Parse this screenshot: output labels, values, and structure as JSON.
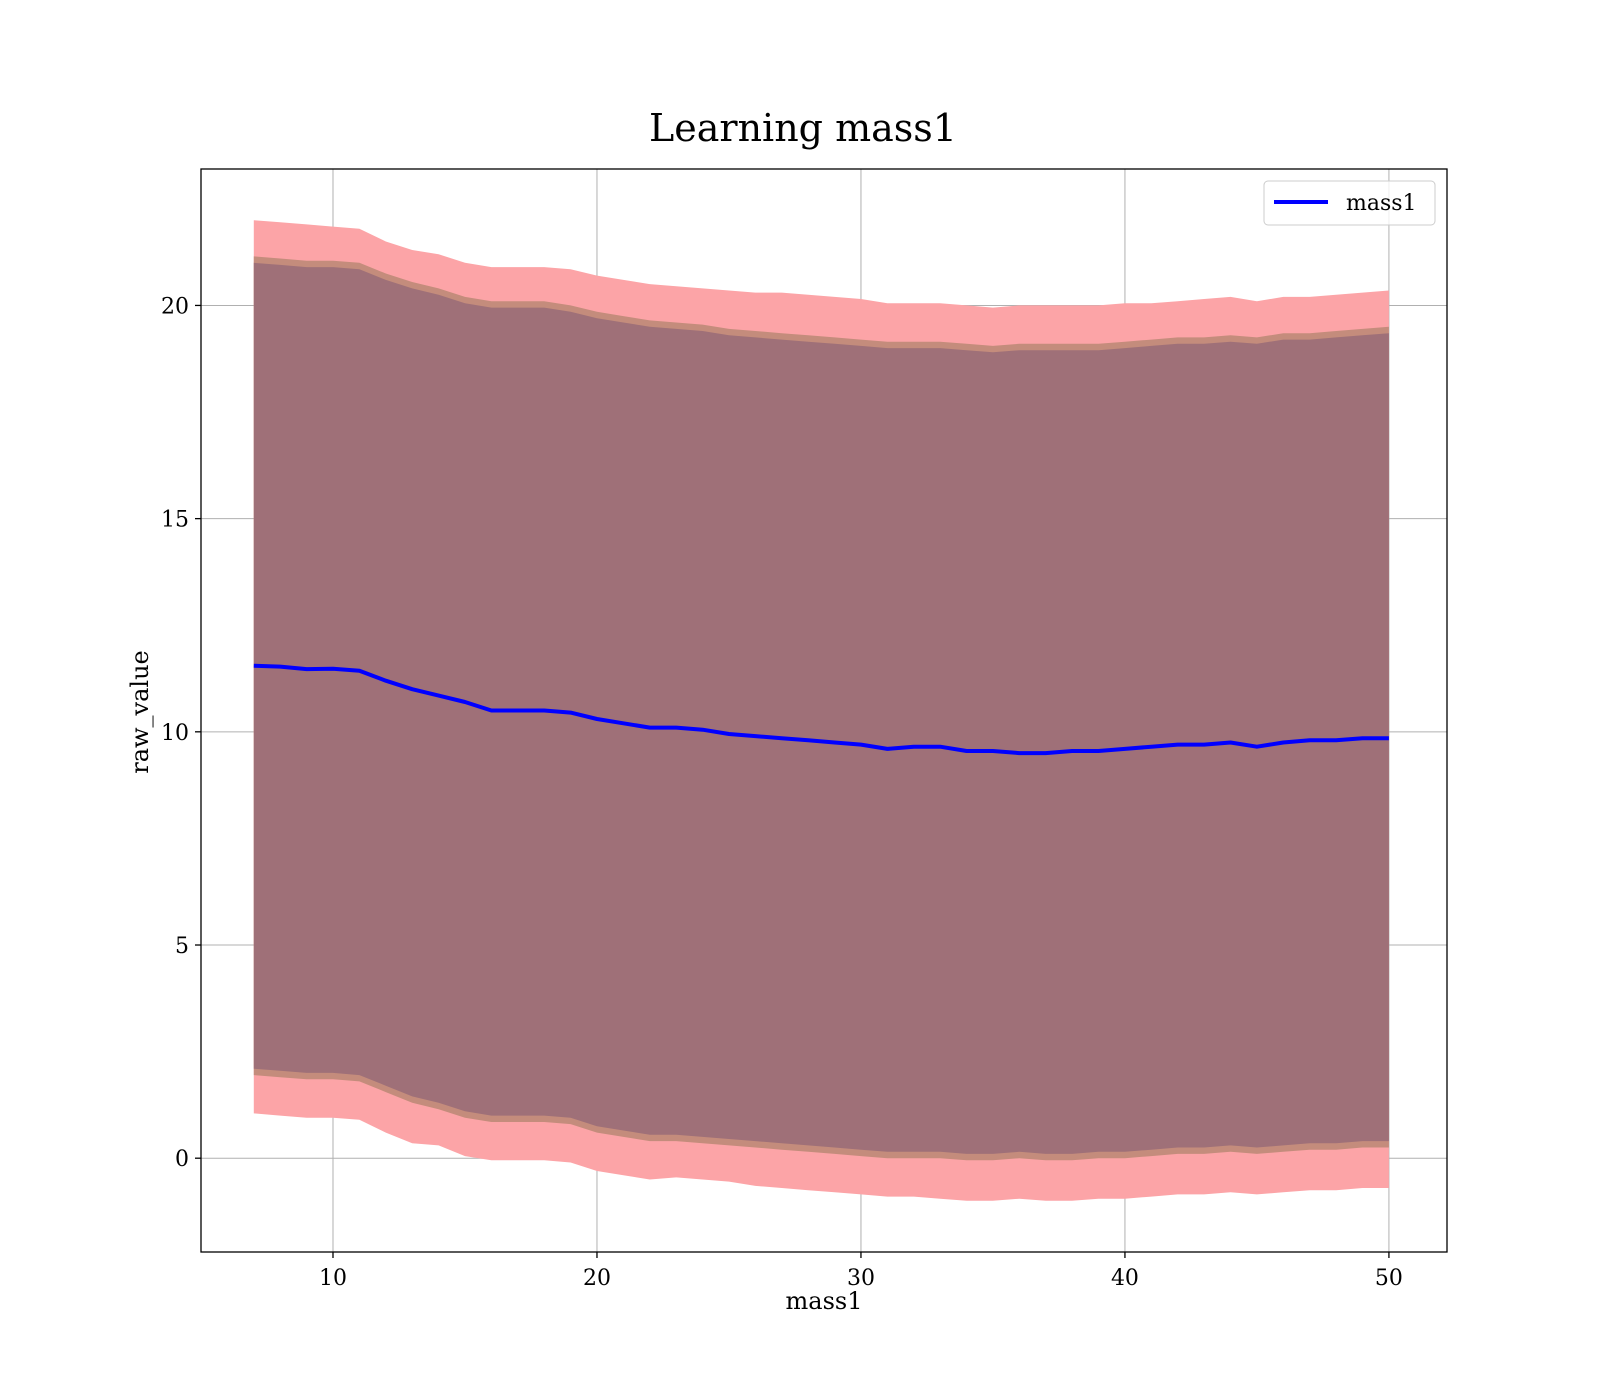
{
  "chart_data": {
    "type": "area",
    "title": "Learning mass1",
    "xlabel": "mass1",
    "ylabel": "raw_value",
    "xlim": [
      5,
      52.2
    ],
    "ylim": [
      -2.2,
      23.2
    ],
    "xticks": [
      10,
      20,
      30,
      40,
      50
    ],
    "yticks": [
      0,
      5,
      10,
      15,
      20
    ],
    "grid": true,
    "legend": {
      "placement": "top-right",
      "entries": [
        "mass1"
      ]
    },
    "colors": {
      "line": "#0000ff",
      "outer_band": "#fca4a7",
      "middle_band": "#c48c7c",
      "inner_band": "#9f7078",
      "grid": "#b0b0b0"
    },
    "x": [
      7,
      8,
      9,
      10,
      11,
      12,
      13,
      14,
      15,
      16,
      17,
      18,
      19,
      20,
      21,
      22,
      23,
      24,
      25,
      26,
      27,
      28,
      29,
      30,
      31,
      32,
      33,
      34,
      35,
      36,
      37,
      38,
      39,
      40,
      41,
      42,
      43,
      44,
      45,
      46,
      47,
      48,
      49,
      50
    ],
    "series": [
      {
        "name": "mass1",
        "values": [
          11.55,
          11.53,
          11.47,
          11.48,
          11.43,
          11.2,
          11.0,
          10.85,
          10.7,
          10.5,
          10.5,
          10.5,
          10.45,
          10.3,
          10.2,
          10.1,
          10.1,
          10.05,
          9.95,
          9.9,
          9.85,
          9.8,
          9.75,
          9.7,
          9.6,
          9.65,
          9.65,
          9.55,
          9.55,
          9.5,
          9.5,
          9.55,
          9.55,
          9.6,
          9.65,
          9.7,
          9.7,
          9.75,
          9.65,
          9.75,
          9.8,
          9.8,
          9.85,
          9.85
        ]
      }
    ],
    "bands": [
      {
        "upper": [
          22.0,
          21.95,
          21.9,
          21.85,
          21.8,
          21.5,
          21.3,
          21.2,
          21.0,
          20.9,
          20.9,
          20.9,
          20.85,
          20.7,
          20.6,
          20.5,
          20.45,
          20.4,
          20.35,
          20.3,
          20.3,
          20.25,
          20.2,
          20.15,
          20.05,
          20.05,
          20.05,
          20.0,
          19.95,
          20.0,
          20.0,
          20.0,
          20.0,
          20.05,
          20.05,
          20.1,
          20.15,
          20.2,
          20.1,
          20.2,
          20.2,
          20.25,
          20.3,
          20.35
        ],
        "lower": [
          1.05,
          1.0,
          0.95,
          0.95,
          0.9,
          0.6,
          0.35,
          0.3,
          0.05,
          -0.05,
          -0.05,
          -0.05,
          -0.1,
          -0.3,
          -0.4,
          -0.5,
          -0.45,
          -0.5,
          -0.55,
          -0.65,
          -0.7,
          -0.75,
          -0.8,
          -0.85,
          -0.9,
          -0.9,
          -0.95,
          -1.0,
          -1.0,
          -0.95,
          -1.0,
          -1.0,
          -0.95,
          -0.95,
          -0.9,
          -0.85,
          -0.85,
          -0.8,
          -0.85,
          -0.8,
          -0.75,
          -0.75,
          -0.7,
          -0.7
        ]
      },
      {
        "upper": [
          21.15,
          21.1,
          21.05,
          21.05,
          21.0,
          20.75,
          20.55,
          20.4,
          20.2,
          20.1,
          20.1,
          20.1,
          20.0,
          19.85,
          19.75,
          19.65,
          19.6,
          19.55,
          19.45,
          19.4,
          19.35,
          19.3,
          19.25,
          19.2,
          19.15,
          19.15,
          19.15,
          19.1,
          19.05,
          19.1,
          19.1,
          19.1,
          19.1,
          19.15,
          19.2,
          19.25,
          19.25,
          19.3,
          19.25,
          19.35,
          19.35,
          19.4,
          19.45,
          19.5
        ],
        "lower": [
          1.95,
          1.9,
          1.85,
          1.85,
          1.8,
          1.55,
          1.3,
          1.15,
          0.95,
          0.85,
          0.85,
          0.85,
          0.8,
          0.6,
          0.5,
          0.4,
          0.4,
          0.35,
          0.3,
          0.25,
          0.2,
          0.15,
          0.1,
          0.05,
          0.0,
          0.0,
          0.0,
          -0.05,
          -0.05,
          0.0,
          -0.05,
          -0.05,
          0.0,
          0.0,
          0.05,
          0.1,
          0.1,
          0.15,
          0.1,
          0.15,
          0.2,
          0.2,
          0.25,
          0.25
        ]
      },
      {
        "upper": [
          21.0,
          20.95,
          20.9,
          20.9,
          20.85,
          20.6,
          20.4,
          20.25,
          20.05,
          19.95,
          19.95,
          19.95,
          19.85,
          19.7,
          19.6,
          19.5,
          19.45,
          19.4,
          19.3,
          19.25,
          19.2,
          19.15,
          19.1,
          19.05,
          19.0,
          19.0,
          19.0,
          18.95,
          18.9,
          18.95,
          18.95,
          18.95,
          18.95,
          19.0,
          19.05,
          19.1,
          19.1,
          19.15,
          19.1,
          19.2,
          19.2,
          19.25,
          19.3,
          19.35
        ],
        "lower": [
          2.1,
          2.05,
          2.0,
          2.0,
          1.95,
          1.7,
          1.45,
          1.3,
          1.1,
          1.0,
          1.0,
          1.0,
          0.95,
          0.75,
          0.65,
          0.55,
          0.55,
          0.5,
          0.45,
          0.4,
          0.35,
          0.3,
          0.25,
          0.2,
          0.15,
          0.15,
          0.15,
          0.1,
          0.1,
          0.15,
          0.1,
          0.1,
          0.15,
          0.15,
          0.2,
          0.25,
          0.25,
          0.3,
          0.25,
          0.3,
          0.35,
          0.35,
          0.4,
          0.4
        ]
      }
    ]
  }
}
